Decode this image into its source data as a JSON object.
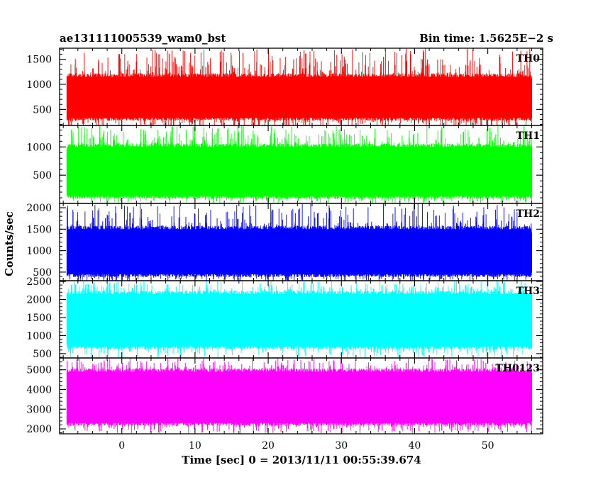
{
  "header": {
    "title": "ae131111005539_wam0_bst",
    "bin_time": "Bin time: 1.5625E−2 s"
  },
  "chart_data": {
    "type": "line",
    "xlabel": "Time [sec] 0 = 2013/11/11 00:55:39.674",
    "ylabel": "Counts/sec",
    "xlim": [
      -8.5,
      57.5
    ],
    "x_range": [
      -7.5,
      56
    ],
    "x_ticks": [
      0,
      10,
      20,
      30,
      40,
      50
    ],
    "x_tick_labels": [
      "0",
      "10",
      "20",
      "30",
      "40",
      "50"
    ],
    "panels": [
      {
        "name": "TH0",
        "color": "#ff0000",
        "ylim": [
          180,
          1720
        ],
        "ticks": [
          500,
          1000,
          1500
        ],
        "tick_labels": [
          "500",
          "1000",
          "1500"
        ],
        "band_low": 330,
        "band_high": 1150,
        "spike_min": 100,
        "spike_max": 1720
      },
      {
        "name": "TH1",
        "color": "#00ff00",
        "ylim": [
          0,
          1380
        ],
        "ticks": [
          500,
          1000
        ],
        "tick_labels": [
          "500",
          "1000"
        ],
        "band_low": 130,
        "band_high": 1000,
        "spike_min": 0,
        "spike_max": 1380
      },
      {
        "name": "TH2",
        "color": "#0000ff",
        "ylim": [
          300,
          2100
        ],
        "ticks": [
          500,
          1000,
          1500,
          2000
        ],
        "tick_labels": [
          "500",
          "1000",
          "1500",
          "2000"
        ],
        "band_low": 450,
        "band_high": 1500,
        "spike_min": 250,
        "spike_max": 2100
      },
      {
        "name": "TH3",
        "color": "#00ffff",
        "ylim": [
          380,
          2520
        ],
        "ticks": [
          500,
          1000,
          1500,
          2000,
          2500
        ],
        "tick_labels": [
          "500",
          "1000",
          "1500",
          "2000",
          "2500"
        ],
        "band_low": 700,
        "band_high": 2150,
        "spike_min": 380,
        "spike_max": 2520
      },
      {
        "name": "TH0123",
        "color": "#ff00ff",
        "ylim": [
          1750,
          5600
        ],
        "ticks": [
          2000,
          3000,
          4000,
          5000
        ],
        "tick_labels": [
          "2000",
          "3000",
          "4000",
          "5000"
        ],
        "band_low": 2300,
        "band_high": 4900,
        "spike_min": 1750,
        "spike_max": 5600
      }
    ]
  }
}
